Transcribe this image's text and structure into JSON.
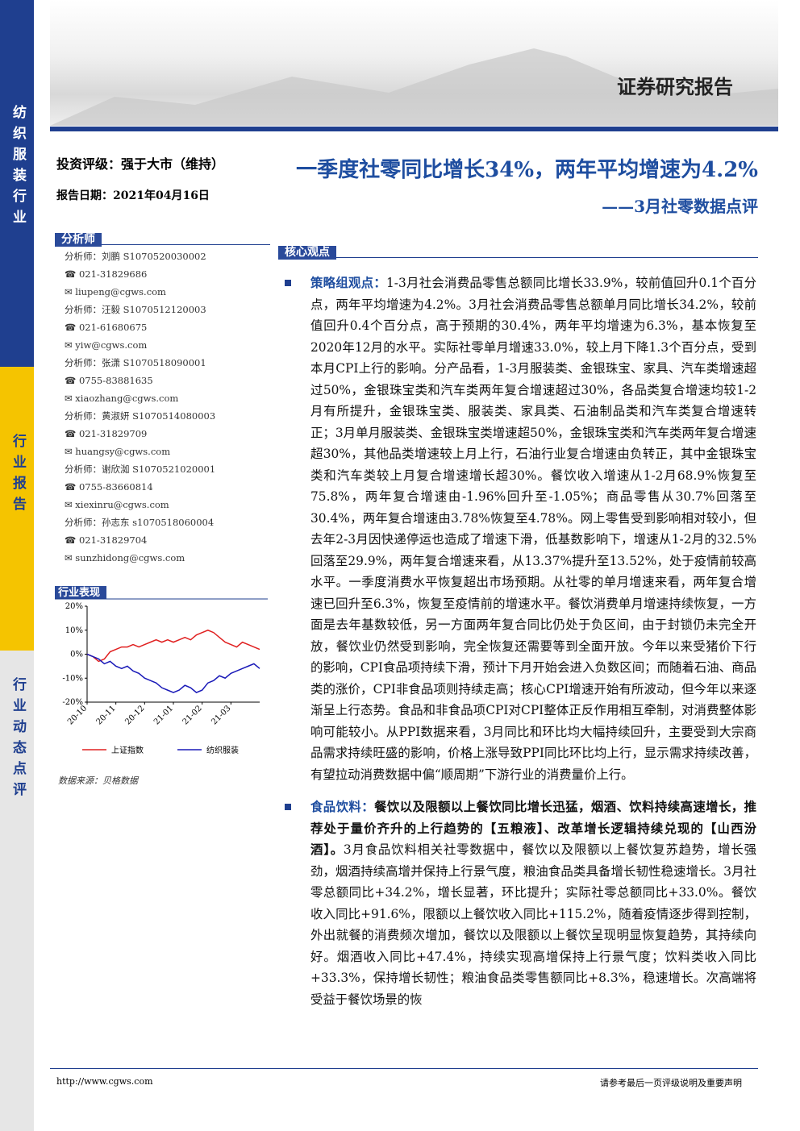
{
  "sidebar": {
    "category": "纺织服装行业",
    "report_type": "行业报告",
    "report_subtype": "行业动态点评"
  },
  "header": {
    "label": "证券研究报告"
  },
  "rating": "投资评级：强于大市（维持）",
  "date": "报告日期：2021年04月16日",
  "analysts": {
    "title": "分析师",
    "lines": [
      {
        "kind": "name",
        "text": "分析师：刘鹏 S1070520030002"
      },
      {
        "kind": "phone",
        "text": "021-31829686"
      },
      {
        "kind": "mail",
        "text": "liupeng@cgws.com"
      },
      {
        "kind": "name",
        "text": "分析师：汪毅 S1070512120003"
      },
      {
        "kind": "phone",
        "text": "021-61680675"
      },
      {
        "kind": "mail",
        "text": "yiw@cgws.com"
      },
      {
        "kind": "name",
        "text": "分析师：张潇 S1070518090001"
      },
      {
        "kind": "phone",
        "text": "0755-83881635"
      },
      {
        "kind": "mail",
        "text": "xiaozhang@cgws.com"
      },
      {
        "kind": "name",
        "text": "分析师：黄淑妍 S1070514080003"
      },
      {
        "kind": "phone",
        "text": "021-31829709"
      },
      {
        "kind": "mail",
        "text": "huangsy@cgws.com"
      },
      {
        "kind": "name",
        "text": "分析师：谢欣洳 S1070521020001"
      },
      {
        "kind": "phone",
        "text": "0755-83660814"
      },
      {
        "kind": "mail",
        "text": "xiexinru@cgws.com"
      },
      {
        "kind": "name",
        "text": "分析师：孙志东 s1070518060004"
      },
      {
        "kind": "phone",
        "text": "021-31829704"
      },
      {
        "kind": "mail",
        "text": "sunzhidong@cgws.com"
      }
    ]
  },
  "chart_data": {
    "type": "line",
    "title": "行业表现",
    "categories": [
      "20-10",
      null,
      null,
      null,
      null,
      "20-11",
      null,
      null,
      null,
      null,
      "20-12",
      null,
      null,
      null,
      null,
      "21-01",
      null,
      null,
      null,
      null,
      "21-02",
      null,
      null,
      null,
      null,
      "21-03",
      null,
      null,
      null,
      null,
      null
    ],
    "series": [
      {
        "name": "上证指数",
        "color": "#e02020",
        "values": [
          0,
          -1,
          -3,
          -2,
          1,
          2,
          3,
          3,
          4,
          3,
          4,
          5,
          6,
          5,
          6,
          5,
          6,
          7,
          6,
          8,
          9,
          10,
          9,
          7,
          5,
          4,
          3,
          5,
          4,
          3,
          2
        ]
      },
      {
        "name": "纺织服装",
        "color": "#1a1ab8",
        "values": [
          0,
          -1,
          -2,
          -4,
          -3,
          -5,
          -6,
          -5,
          -7,
          -8,
          -10,
          -11,
          -12,
          -14,
          -15,
          -16,
          -15,
          -13,
          -14,
          -16,
          -15,
          -12,
          -11,
          -9,
          -10,
          -8,
          -7,
          -6,
          -5,
          -4,
          -6
        ]
      }
    ],
    "ylim": [
      -20,
      20
    ],
    "yticks": [
      {
        "value": 20,
        "label": "20%"
      },
      {
        "value": 10,
        "label": "10%"
      },
      {
        "value": 0,
        "label": "0%"
      },
      {
        "value": -10,
        "label": "-10%"
      },
      {
        "value": -20,
        "label": "-20%"
      }
    ]
  },
  "source": "数据来源：贝格数据",
  "title": "一季度社零同比增长34%，两年平均增速为4.2%",
  "subtitle": "——3月社零数据点评",
  "section_title": "核心观点",
  "paragraphs": [
    {
      "lead": "策略组观点：",
      "bold": "",
      "text": "1-3月社会消费品零售总额同比增长33.9%，较前值回升0.1个百分点，两年平均增速为4.2%。3月社会消费品零售总额单月同比增长34.2%，较前值回升0.4个百分点，高于预期的30.4%，两年平均增速为6.3%，基本恢复至2020年12月的水平。实际社零单月增速33.0%，较上月下降1.3个百分点，受到本月CPI上行的影响。分产品看，1-3月服装类、金银珠宝、家具、汽车类增速超过50%，金银珠宝类和汽车类两年复合增速超过30%，各品类复合增速均较1-2月有所提升，金银珠宝类、服装类、家具类、石油制品类和汽车类复合增速转正；3月单月服装类、金银珠宝类增速超50%，金银珠宝类和汽车类两年复合增速超30%，其他品类增速较上月上行，石油行业复合增速由负转正，其中金银珠宝类和汽车类较上月复合增速增长超30%。餐饮收入增速从1-2月68.9%恢复至75.8%，两年复合增速由-1.96%回升至-1.05%；商品零售从30.7%回落至30.4%，两年复合增速由3.78%恢复至4.78%。网上零售受到影响相对较小，但去年2-3月因快递停运也造成了增速下滑，低基数影响下，增速从1-2月的32.5%回落至29.9%，两年复合增速来看，从13.37%提升至13.52%，处于疫情前较高水平。一季度消费水平恢复超出市场预期。从社零的单月增速来看，两年复合增速已回升至6.3%，恢复至疫情前的增速水平。餐饮消费单月增速持续恢复，一方面是去年基数较低，另一方面两年复合同比仍处于负区间，由于封锁仍未完全开放，餐饮业仍然受到影响，完全恢复还需要等到全面开放。今年以来受猪价下行的影响，CPI食品项持续下滑，预计下月开始会进入负数区间；而随着石油、商品类的涨价，CPI非食品项则持续走高；核心CPI增速开始有所波动，但今年以来逐渐呈上行态势。食品和非食品项CPI对CPI整体正反作用相互牵制，对消费整体影响可能较小。从PPI数据来看，3月同比和环比均大幅持续回升，主要受到大宗商品需求持续旺盛的影响，价格上涨导致PPI同比环比均上行，显示需求持续改善，有望拉动消费数据中偏“顺周期”下游行业的消费量价上行。"
    },
    {
      "lead": "食品饮料：",
      "bold": "餐饮以及限额以上餐饮同比增长迅猛，烟酒、饮料持续高速增长，推荐处于量价齐升的上行趋势的【五粮液】、改革增长逻辑持续兑现的【山西汾酒】。",
      "text": "3月食品饮料相关社零数据中，餐饮以及限额以上餐饮复苏趋势，增长强劲，烟酒持续高增并保持上行景气度，粮油食品类具备增长韧性稳速增长。3月社零总额同比+34.2%，增长显著，环比提升；实际社零总额同比+33.0%。餐饮收入同比+91.6%，限额以上餐饮收入同比+115.2%，随着疫情逐步得到控制，外出就餐的消费频次增加，餐饮以及限额以上餐饮呈现明显恢复趋势，其持续向好。烟酒收入同比+47.4%，持续实现高增保持上行景气度；饮料类收入同比+33.3%，保持增长韧性；粮油食品类零售额同比+8.3%，稳速增长。次高端将受益于餐饮场景的恢"
    }
  ],
  "footer": {
    "url": "http://www.cgws.com",
    "disclaimer": "请参考最后一页评级说明及重要声明"
  }
}
